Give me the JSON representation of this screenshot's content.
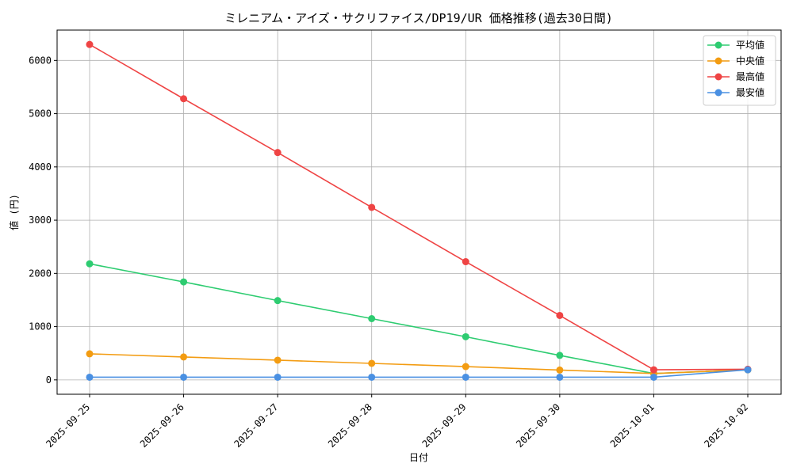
{
  "chart_data": {
    "type": "line",
    "title": "ミレニアム・アイズ・サクリファイス/DP19/UR 価格推移(過去30日間)",
    "xlabel": "日付",
    "ylabel": "値 (円)",
    "categories": [
      "2025-09-25",
      "2025-09-26",
      "2025-09-27",
      "2025-09-28",
      "2025-09-29",
      "2025-09-30",
      "2025-10-01",
      "2025-10-02"
    ],
    "ylim": [
      -270,
      6570
    ],
    "yticks": [
      0,
      1000,
      2000,
      3000,
      4000,
      5000,
      6000
    ],
    "grid": true,
    "legend_position": "top-right",
    "series": [
      {
        "name": "平均値",
        "color": "#2ecc71",
        "values": [
          2180,
          1840,
          1490,
          1150,
          810,
          460,
          120,
          190
        ]
      },
      {
        "name": "中央値",
        "color": "#f39c12",
        "values": [
          490,
          430,
          370,
          310,
          250,
          185,
          120,
          190
        ]
      },
      {
        "name": "最高値",
        "color": "#ef4444",
        "values": [
          6300,
          5280,
          4270,
          3240,
          2220,
          1210,
          190,
          200
        ]
      },
      {
        "name": "最安値",
        "color": "#4a90e2",
        "values": [
          50,
          50,
          50,
          50,
          50,
          50,
          50,
          190
        ]
      }
    ]
  }
}
